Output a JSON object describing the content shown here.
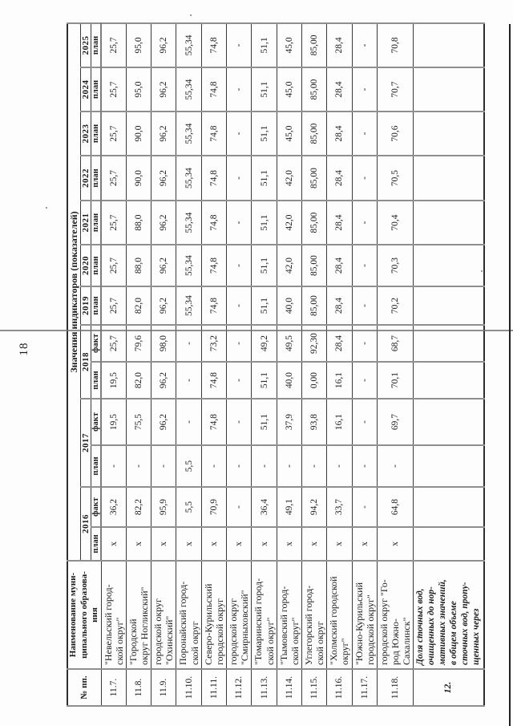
{
  "page": {
    "number": "18"
  },
  "table": {
    "header": {
      "num": "№ пп.",
      "name": "Наименование муни-\nципального образова-\nния",
      "values": "Значения индикаторов (показателей)"
    },
    "years": [
      {
        "label": "2016",
        "sub": [
          "план",
          "факт"
        ]
      },
      {
        "label": "2017",
        "sub": [
          "план",
          "факт"
        ]
      },
      {
        "label": "2018",
        "sub": [
          "план",
          "факт"
        ]
      },
      {
        "label": "2019",
        "sub": [
          "план"
        ]
      },
      {
        "label": "2020",
        "sub": [
          "план"
        ]
      },
      {
        "label": "2021",
        "sub": [
          "план"
        ]
      },
      {
        "label": "2022",
        "sub": [
          "план"
        ]
      },
      {
        "label": "2023",
        "sub": [
          "план"
        ]
      },
      {
        "label": "2024",
        "sub": [
          "план"
        ]
      },
      {
        "label": "2025",
        "sub": [
          "план"
        ]
      }
    ],
    "rows": [
      {
        "num": "11.7.",
        "name": "\"Невельский город-\nской округ\"",
        "values": [
          "х",
          "36,2",
          "-",
          "19,5",
          "19,5",
          "25,7",
          "25,7",
          "25,7",
          "25,7",
          "25,7",
          "25,7",
          "25,7",
          "25,7"
        ]
      },
      {
        "num": "11.8.",
        "name": "\"Городской\nокруг Ногликский\"",
        "values": [
          "х",
          "82,2",
          "-",
          "75,5",
          "82,0",
          "79,6",
          "82,0",
          "88,0",
          "88,0",
          "90,0",
          "90,0",
          "95,0",
          "95,0"
        ]
      },
      {
        "num": "11.9.",
        "name": "городской округ\n\"Охинский\"",
        "values": [
          "х",
          "95,9",
          "-",
          "96,2",
          "96,2",
          "98,0",
          "96,2",
          "96,2",
          "96,2",
          "96,2",
          "96,2",
          "96,2",
          "96,2"
        ]
      },
      {
        "num": "11.10.",
        "name": "Поронайский город-\nской округ",
        "values": [
          "х",
          "5,5",
          "5,5",
          "-",
          "-",
          "-",
          "55,34",
          "55,34",
          "55,34",
          "55,34",
          "55,34",
          "55,34",
          "55,34"
        ]
      },
      {
        "num": "11.11.",
        "name": "Северо-Курильский\nгородской округ",
        "values": [
          "х",
          "70,9",
          "-",
          "74,8",
          "74,8",
          "73,2",
          "74,8",
          "74,8",
          "74,8",
          "74,8",
          "74,8",
          "74,8",
          "74,8"
        ]
      },
      {
        "num": "11.12.",
        "name": "городской округ\n\"Смирныховский\"",
        "values": [
          "х",
          "-",
          "-",
          "-",
          "-",
          "-",
          "-",
          "-",
          "-",
          "-",
          "-",
          "-",
          "-"
        ]
      },
      {
        "num": "11.13.",
        "name": "\"Томаринский город-\nской округ\"",
        "values": [
          "х",
          "36,4",
          "-",
          "51,1",
          "51,1",
          "49,2",
          "51,1",
          "51,1",
          "51,1",
          "51,1",
          "51,1",
          "51,1",
          "51,1"
        ]
      },
      {
        "num": "11.14.",
        "name": "\"Тымовский город-\nской округ\"",
        "values": [
          "х",
          "49,1",
          "-",
          "37,9",
          "40,0",
          "49,5",
          "40,0",
          "42,0",
          "42,0",
          "42,0",
          "45,0",
          "45,0",
          "45,0"
        ]
      },
      {
        "num": "11.15.",
        "name": "Углегорский город-\nской округ",
        "values": [
          "х",
          "94,2",
          "-",
          "93,8",
          "0,00",
          "92,30",
          "85,00",
          "85,00",
          "85,00",
          "85,00",
          "85,00",
          "85,00",
          "85,00"
        ]
      },
      {
        "num": "11.16.",
        "name": "\"Холмский городской\nокруг\"",
        "values": [
          "х",
          "33,7",
          "-",
          "16,1",
          "16,1",
          "28,4",
          "28,4",
          "28,4",
          "28,4",
          "28,4",
          "28,4",
          "28,4",
          "28,4"
        ]
      },
      {
        "num": "11.17.",
        "name": "\"Южно-Курильский\nгородской округ\"",
        "values": [
          "х",
          "-",
          "-",
          "-",
          "-",
          "-",
          "-",
          "-",
          "-",
          "-",
          "-",
          "-",
          "-"
        ]
      },
      {
        "num": "11.18.",
        "name": "городской округ \"Го-\nрод Южно-\nСахалинск\"",
        "values": [
          "х",
          "64,8",
          "-",
          "69,7",
          "70,1",
          "68,7",
          "70,2",
          "70,3",
          "70,4",
          "70,5",
          "70,6",
          "70,7",
          "70,8"
        ]
      },
      {
        "num": "12.",
        "name": "Доля сточных вод,\nочищенных до нор-\nмативных значений,\nв общем объеме\nсточных вод, пропу-\nщенных через",
        "emphasis": true,
        "values": [
          "",
          "",
          "",
          "",
          "",
          "",
          "",
          "",
          "",
          "",
          "",
          "",
          ""
        ]
      }
    ]
  }
}
